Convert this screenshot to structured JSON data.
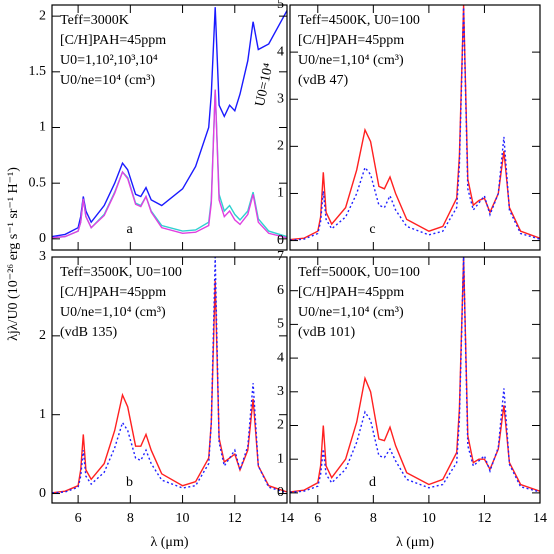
{
  "chart_data": [
    {
      "type": "line",
      "panel_label": "a",
      "annotations": [
        "Teff=3000K",
        "[C/H]PAH=45ppm",
        "U0=1,10²,10³,10⁴",
        "U0/ne=10⁴ (cm³)"
      ],
      "curve_label": "U0=10⁴",
      "ylabel": "λjλ/U0  (10⁻²⁶ erg s⁻¹ sr⁻¹ H⁻¹)",
      "x": [
        5,
        5.5,
        6,
        6.1,
        6.2,
        6.3,
        6.5,
        7,
        7.4,
        7.7,
        7.9,
        8.2,
        8.4,
        8.6,
        8.8,
        9.2,
        10,
        10.5,
        11,
        11.1,
        11.25,
        11.4,
        11.6,
        11.8,
        12,
        12.2,
        12.5,
        12.7,
        12.9,
        13.3,
        14
      ],
      "series": [
        {
          "color": "#1a1aff",
          "linestyle": "solid",
          "values": [
            0.02,
            0.04,
            0.1,
            0.2,
            0.38,
            0.25,
            0.15,
            0.3,
            0.5,
            0.68,
            0.62,
            0.4,
            0.38,
            0.46,
            0.35,
            0.3,
            0.45,
            0.65,
            1.0,
            1.3,
            2.08,
            1.2,
            1.1,
            1.2,
            1.15,
            1.3,
            1.6,
            1.95,
            1.7,
            1.75,
            2.05
          ]
        },
        {
          "color": "#30d0d0",
          "linestyle": "solid",
          "values": [
            0.01,
            0.02,
            0.07,
            0.15,
            0.36,
            0.2,
            0.1,
            0.22,
            0.42,
            0.6,
            0.55,
            0.32,
            0.3,
            0.38,
            0.25,
            0.12,
            0.07,
            0.08,
            0.15,
            0.35,
            1.34,
            0.4,
            0.25,
            0.3,
            0.22,
            0.17,
            0.25,
            0.42,
            0.18,
            0.07,
            0.02
          ]
        },
        {
          "color": "#e040e0",
          "linestyle": "solid",
          "values": [
            0.01,
            0.02,
            0.07,
            0.15,
            0.36,
            0.2,
            0.1,
            0.21,
            0.41,
            0.6,
            0.54,
            0.31,
            0.29,
            0.38,
            0.24,
            0.1,
            0.05,
            0.06,
            0.12,
            0.32,
            1.34,
            0.35,
            0.2,
            0.25,
            0.17,
            0.13,
            0.22,
            0.4,
            0.15,
            0.05,
            0.01
          ]
        }
      ],
      "xlim": [
        5,
        14
      ],
      "xticks": [
        6,
        8,
        10,
        12,
        14
      ],
      "ylim": [
        -0.1,
        2.1
      ],
      "yticks": [
        0,
        0.5,
        1,
        1.5,
        2
      ]
    },
    {
      "type": "line",
      "panel_label": "c",
      "annotations": [
        "Teff=4500K, U0=100",
        "[C/H]PAH=45ppm",
        "U0/ne=1,10⁴ (cm³)",
        "(vdB 47)"
      ],
      "x": [
        5,
        5.5,
        6,
        6.1,
        6.2,
        6.3,
        6.5,
        7,
        7.4,
        7.7,
        7.9,
        8.2,
        8.4,
        8.6,
        8.8,
        9.2,
        10,
        10.5,
        11,
        11.1,
        11.25,
        11.4,
        11.6,
        11.8,
        12,
        12.2,
        12.5,
        12.7,
        12.9,
        13.3,
        14
      ],
      "series": [
        {
          "color": "#ff2020",
          "linestyle": "solid",
          "values": [
            0.02,
            0.05,
            0.2,
            0.5,
            1.45,
            0.6,
            0.35,
            0.7,
            1.5,
            2.35,
            2.1,
            1.15,
            1.1,
            1.35,
            1.0,
            0.45,
            0.2,
            0.3,
            0.9,
            1.8,
            5.0,
            1.3,
            0.75,
            0.85,
            0.9,
            0.6,
            1.0,
            1.9,
            0.7,
            0.2,
            0.05
          ]
        },
        {
          "color": "#2020ff",
          "linestyle": "dotted",
          "values": [
            0.01,
            0.03,
            0.15,
            0.4,
            1.05,
            0.45,
            0.25,
            0.5,
            1.0,
            1.55,
            1.4,
            0.75,
            0.7,
            0.95,
            0.65,
            0.3,
            0.12,
            0.2,
            0.7,
            1.6,
            4.95,
            1.1,
            0.65,
            0.8,
            0.95,
            0.55,
            1.0,
            2.2,
            0.65,
            0.15,
            0.03
          ]
        }
      ],
      "xlim": [
        5,
        14
      ],
      "xticks": [
        6,
        8,
        10,
        12,
        14
      ],
      "ylim": [
        -0.2,
        5
      ],
      "yticks": [
        0,
        1,
        2,
        3,
        4,
        5
      ]
    },
    {
      "type": "line",
      "panel_label": "b",
      "annotations": [
        "Teff=3500K, U0=100",
        "[C/H]PAH=45ppm",
        "U0/ne=1,10⁴ (cm³)",
        "(vdB 135)"
      ],
      "xlabel": "λ (μm)",
      "x": [
        5,
        5.5,
        6,
        6.1,
        6.2,
        6.3,
        6.5,
        7,
        7.4,
        7.7,
        7.9,
        8.2,
        8.4,
        8.6,
        8.8,
        9.2,
        10,
        10.5,
        11,
        11.1,
        11.25,
        11.4,
        11.6,
        11.8,
        12,
        12.2,
        12.5,
        12.7,
        12.9,
        13.3,
        14
      ],
      "series": [
        {
          "color": "#ff2020",
          "linestyle": "solid",
          "values": [
            0.01,
            0.03,
            0.1,
            0.3,
            0.75,
            0.3,
            0.18,
            0.38,
            0.8,
            1.25,
            1.1,
            0.6,
            0.6,
            0.75,
            0.55,
            0.25,
            0.1,
            0.15,
            0.45,
            0.9,
            2.7,
            0.7,
            0.4,
            0.45,
            0.5,
            0.3,
            0.55,
            1.2,
            0.35,
            0.1,
            0.02
          ]
        },
        {
          "color": "#2020ff",
          "linestyle": "dotted",
          "values": [
            0.01,
            0.02,
            0.08,
            0.22,
            0.55,
            0.22,
            0.12,
            0.27,
            0.58,
            0.9,
            0.8,
            0.45,
            0.42,
            0.55,
            0.38,
            0.17,
            0.07,
            0.1,
            0.38,
            0.9,
            3.0,
            0.65,
            0.35,
            0.45,
            0.55,
            0.3,
            0.6,
            1.4,
            0.35,
            0.08,
            0.01
          ]
        }
      ],
      "xlim": [
        5,
        14
      ],
      "xticks": [
        6,
        8,
        10,
        12,
        14
      ],
      "ylim": [
        -0.12,
        3
      ],
      "yticks": [
        0,
        1,
        2,
        3
      ]
    },
    {
      "type": "line",
      "panel_label": "d",
      "annotations": [
        "Teff=5000K, U0=100",
        "[C/H]PAH=45ppm",
        "U0/ne=1,10⁴ (cm³)",
        "(vdB 101)"
      ],
      "xlabel": "λ (μm)",
      "x": [
        5,
        5.5,
        6,
        6.1,
        6.2,
        6.3,
        6.5,
        7,
        7.4,
        7.7,
        7.9,
        8.2,
        8.4,
        8.6,
        8.8,
        9.2,
        10,
        10.5,
        11,
        11.1,
        11.25,
        11.4,
        11.6,
        11.8,
        12,
        12.2,
        12.5,
        12.7,
        12.9,
        13.3,
        14
      ],
      "series": [
        {
          "color": "#ff2020",
          "linestyle": "solid",
          "values": [
            0.03,
            0.08,
            0.3,
            0.8,
            2.0,
            0.8,
            0.45,
            1.0,
            2.1,
            3.4,
            3.0,
            1.6,
            1.55,
            1.95,
            1.4,
            0.6,
            0.25,
            0.4,
            1.2,
            2.5,
            7.0,
            1.7,
            0.9,
            1.0,
            1.0,
            0.7,
            1.3,
            2.6,
            0.9,
            0.25,
            0.05
          ]
        },
        {
          "color": "#2020ff",
          "linestyle": "dotted",
          "values": [
            0.02,
            0.05,
            0.2,
            0.55,
            1.3,
            0.55,
            0.3,
            0.7,
            1.5,
            2.4,
            2.15,
            1.1,
            1.05,
            1.3,
            0.95,
            0.4,
            0.15,
            0.25,
            0.9,
            2.2,
            7.0,
            1.4,
            0.8,
            0.95,
            1.1,
            0.65,
            1.35,
            3.1,
            0.85,
            0.18,
            0.03
          ]
        }
      ],
      "xlim": [
        5,
        14
      ],
      "xticks": [
        6,
        8,
        10,
        12,
        14
      ],
      "ylim": [
        -0.3,
        7
      ],
      "yticks": [
        0,
        1,
        2,
        3,
        4,
        5,
        6,
        7
      ]
    }
  ]
}
